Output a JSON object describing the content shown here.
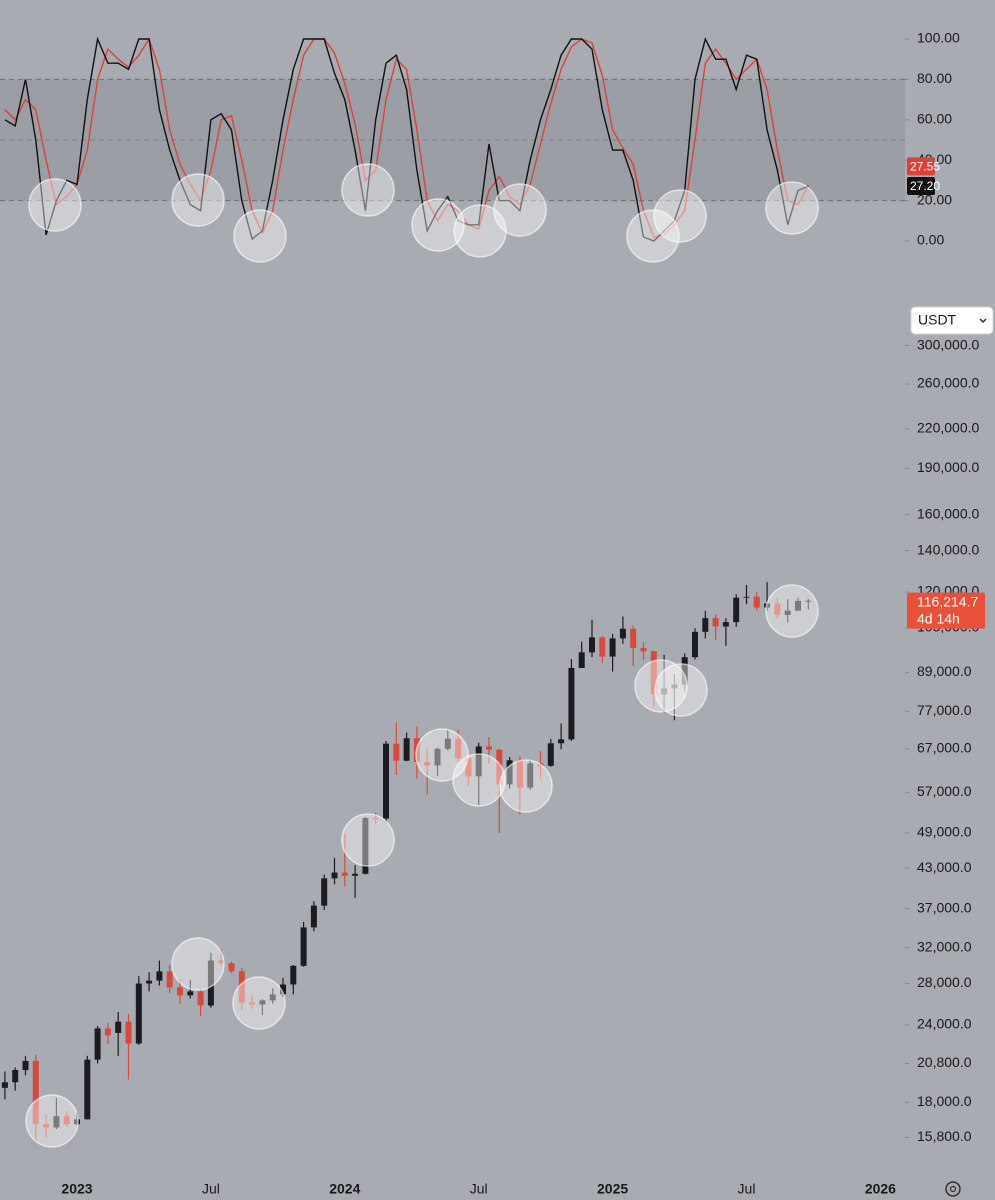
{
  "toolbar": {
    "currency": "USDT"
  },
  "chart_data": [
    {
      "type": "line",
      "ylim": [
        0,
        100
      ],
      "yticks": [
        {
          "value": 100,
          "label": "100.00"
        },
        {
          "value": 80,
          "label": "80.00"
        },
        {
          "value": 60,
          "label": "60.00"
        },
        {
          "value": 40,
          "label": "40.00"
        },
        {
          "value": 20,
          "label": "20.00"
        },
        {
          "value": 0,
          "label": "0.00"
        }
      ],
      "band": [
        20,
        80
      ],
      "band_color": "#9c9ea5",
      "midline": 50,
      "series": [
        {
          "color": "#111111",
          "values": [
            60,
            57,
            80,
            50,
            3,
            20,
            30,
            28,
            70,
            100,
            88,
            88,
            85,
            100,
            100,
            65,
            45,
            30,
            18,
            15,
            60,
            63,
            55,
            20,
            1,
            5,
            30,
            60,
            85,
            100,
            100,
            100,
            83,
            70,
            45,
            15,
            60,
            88,
            92,
            75,
            35,
            5,
            15,
            22,
            10,
            8,
            8,
            48,
            20,
            20,
            15,
            40,
            60,
            75,
            92,
            100,
            100,
            95,
            65,
            45,
            45,
            30,
            2,
            0,
            5,
            10,
            25,
            80,
            100,
            90,
            90,
            75,
            92,
            90,
            55,
            35,
            8,
            25,
            27.2
          ]
        },
        {
          "color": "#d9443a",
          "values": [
            65,
            60,
            70,
            65,
            40,
            18,
            22,
            28,
            45,
            80,
            95,
            90,
            86,
            92,
            100,
            85,
            55,
            38,
            28,
            20,
            35,
            60,
            62,
            40,
            15,
            4,
            15,
            45,
            70,
            92,
            100,
            100,
            93,
            78,
            58,
            30,
            35,
            70,
            90,
            85,
            55,
            20,
            10,
            18,
            15,
            8,
            6,
            25,
            32,
            22,
            18,
            28,
            48,
            68,
            85,
            96,
            100,
            98,
            82,
            55,
            46,
            38,
            15,
            2,
            3,
            8,
            15,
            50,
            88,
            95,
            88,
            80,
            85,
            90,
            75,
            45,
            20,
            18,
            27.55
          ]
        }
      ],
      "price_tags": [
        {
          "value": 27.55,
          "label": "27.55",
          "color": "#d9443a"
        },
        {
          "value": 27.2,
          "label": "27.20",
          "color": "#111111"
        }
      ]
    },
    {
      "type": "candlestick",
      "log_scale": true,
      "ylim": [
        14000,
        312000
      ],
      "up_color": "#1c1c20",
      "down_color": "#d64a3c",
      "yticks": [
        {
          "value": 300000,
          "label": "300,000.0"
        },
        {
          "value": 260000,
          "label": "260,000.0"
        },
        {
          "value": 220000,
          "label": "220,000.0"
        },
        {
          "value": 190000,
          "label": "190,000.0"
        },
        {
          "value": 160000,
          "label": "160,000.0"
        },
        {
          "value": 140000,
          "label": "140,000.0"
        },
        {
          "value": 120000,
          "label": "120,000.0"
        },
        {
          "value": 105000,
          "label": "105,000.0"
        },
        {
          "value": 89000,
          "label": "89,000.0"
        },
        {
          "value": 77000,
          "label": "77,000.0"
        },
        {
          "value": 67000,
          "label": "67,000.0"
        },
        {
          "value": 57000,
          "label": "57,000.0"
        },
        {
          "value": 49000,
          "label": "49,000.0"
        },
        {
          "value": 43000,
          "label": "43,000.0"
        },
        {
          "value": 37000,
          "label": "37,000.0"
        },
        {
          "value": 32000,
          "label": "32,000.0"
        },
        {
          "value": 28000,
          "label": "28,000.0"
        },
        {
          "value": 24000,
          "label": "24,000.0"
        },
        {
          "value": 20800,
          "label": "20,800.0"
        },
        {
          "value": 18000,
          "label": "18,000.0"
        },
        {
          "value": 15800,
          "label": "15,800.0"
        }
      ],
      "categories": [
        null,
        null,
        null,
        null,
        null,
        null,
        null,
        "2023",
        null,
        null,
        null,
        null,
        null,
        null,
        null,
        null,
        null,
        null,
        null,
        null,
        "Jul",
        null,
        null,
        null,
        null,
        null,
        null,
        null,
        null,
        null,
        null,
        null,
        null,
        "2024",
        null,
        null,
        null,
        null,
        null,
        null,
        null,
        null,
        null,
        null,
        null,
        null,
        "Jul",
        null,
        null,
        null,
        null,
        null,
        null,
        null,
        null,
        null,
        null,
        null,
        null,
        "2025",
        null,
        null,
        null,
        null,
        null,
        null,
        null,
        null,
        null,
        null,
        null,
        null,
        "Jul",
        null,
        null,
        null,
        null,
        null,
        null,
        null,
        null,
        null,
        null,
        null,
        null,
        "2026",
        null,
        null
      ],
      "open": [
        19000,
        19400,
        20300,
        21000,
        16600,
        16400,
        17100,
        16600,
        16900,
        21100,
        23700,
        23300,
        24300,
        22400,
        28000,
        28300,
        29300,
        27600,
        26800,
        27200,
        25800,
        30500,
        30200,
        29300,
        26100,
        25900,
        26300,
        26900,
        27900,
        29900,
        34500,
        37400,
        41400,
        42300,
        41800,
        42100,
        51800,
        51700,
        68300,
        64100,
        69700,
        63800,
        63000,
        67000,
        69600,
        64700,
        60500,
        67600,
        66800,
        58700,
        64200,
        58000,
        63500,
        62900,
        68400,
        69400,
        90500,
        95900,
        101400,
        94400,
        101000,
        104700,
        97500,
        96300,
        82000,
        83900,
        85100,
        94200,
        103500,
        108900,
        105600,
        107300,
        117500,
        117900,
        113300,
        115000,
        110200,
        112000,
        116100,
        null,
        null,
        null,
        null,
        null,
        null,
        null,
        null,
        null
      ],
      "high": [
        20200,
        20500,
        21400,
        21500,
        17200,
        18300,
        17400,
        17300,
        21400,
        23900,
        24200,
        25200,
        25000,
        28800,
        29200,
        30500,
        30000,
        28400,
        28400,
        27400,
        31400,
        31800,
        30400,
        29700,
        26800,
        26400,
        27500,
        28600,
        30000,
        35200,
        38000,
        42000,
        44700,
        48900,
        43500,
        52000,
        52900,
        69000,
        73800,
        71200,
        72800,
        67300,
        67300,
        71900,
        71900,
        65000,
        68500,
        70000,
        66900,
        65000,
        65200,
        64200,
        66400,
        69500,
        73600,
        93500,
        99800,
        108300,
        102000,
        102700,
        109600,
        106000,
        99500,
        96500,
        95000,
        88500,
        95500,
        104900,
        111900,
        110400,
        108900,
        119000,
        123200,
        120200,
        124500,
        117500,
        116800,
        117500,
        117000,
        null,
        null,
        null,
        null,
        null,
        null,
        null,
        null,
        null
      ],
      "low": [
        18200,
        18800,
        19900,
        15600,
        15800,
        16300,
        16500,
        16500,
        16900,
        20800,
        22400,
        21400,
        19600,
        22300,
        27200,
        27800,
        27000,
        26000,
        26500,
        24800,
        25600,
        29900,
        29100,
        25400,
        25500,
        24900,
        26000,
        26600,
        26900,
        29800,
        34000,
        36800,
        40500,
        40200,
        38500,
        42000,
        50600,
        51000,
        60800,
        64000,
        60000,
        56500,
        60600,
        66600,
        64000,
        58400,
        54300,
        63400,
        49000,
        57800,
        52500,
        57500,
        59800,
        62700,
        66900,
        69000,
        90500,
        94200,
        92200,
        89300,
        99000,
        91200,
        93300,
        78200,
        76600,
        74500,
        83000,
        93400,
        101000,
        100300,
        98200,
        105500,
        114700,
        112000,
        112000,
        108700,
        107200,
        111700,
        112500,
        null,
        null,
        null,
        null,
        null,
        null,
        null,
        null,
        null
      ],
      "close": [
        19400,
        20300,
        21000,
        16600,
        16400,
        17100,
        16600,
        16900,
        21100,
        23700,
        23100,
        24300,
        22400,
        28000,
        28300,
        29300,
        27600,
        26800,
        27200,
        25800,
        30500,
        30200,
        29300,
        26100,
        25900,
        26300,
        26900,
        27900,
        29900,
        34500,
        37400,
        41400,
        42300,
        41800,
        42100,
        51800,
        51700,
        68300,
        64100,
        69700,
        63800,
        63000,
        67000,
        69600,
        64700,
        60500,
        67600,
        66800,
        58700,
        64200,
        58000,
        63500,
        62900,
        68400,
        69400,
        90500,
        95900,
        101400,
        94400,
        101000,
        104700,
        97500,
        96300,
        82000,
        83900,
        85100,
        94200,
        103500,
        108900,
        105600,
        107300,
        117500,
        117900,
        113300,
        115000,
        110200,
        112000,
        116100,
        116214.7,
        null,
        null,
        null,
        null,
        null,
        null,
        null,
        null,
        null
      ],
      "last_price": {
        "value": 116214.7,
        "label": "116,214.7",
        "color": "#e8503a"
      },
      "countdown": "4d 14h"
    }
  ]
}
